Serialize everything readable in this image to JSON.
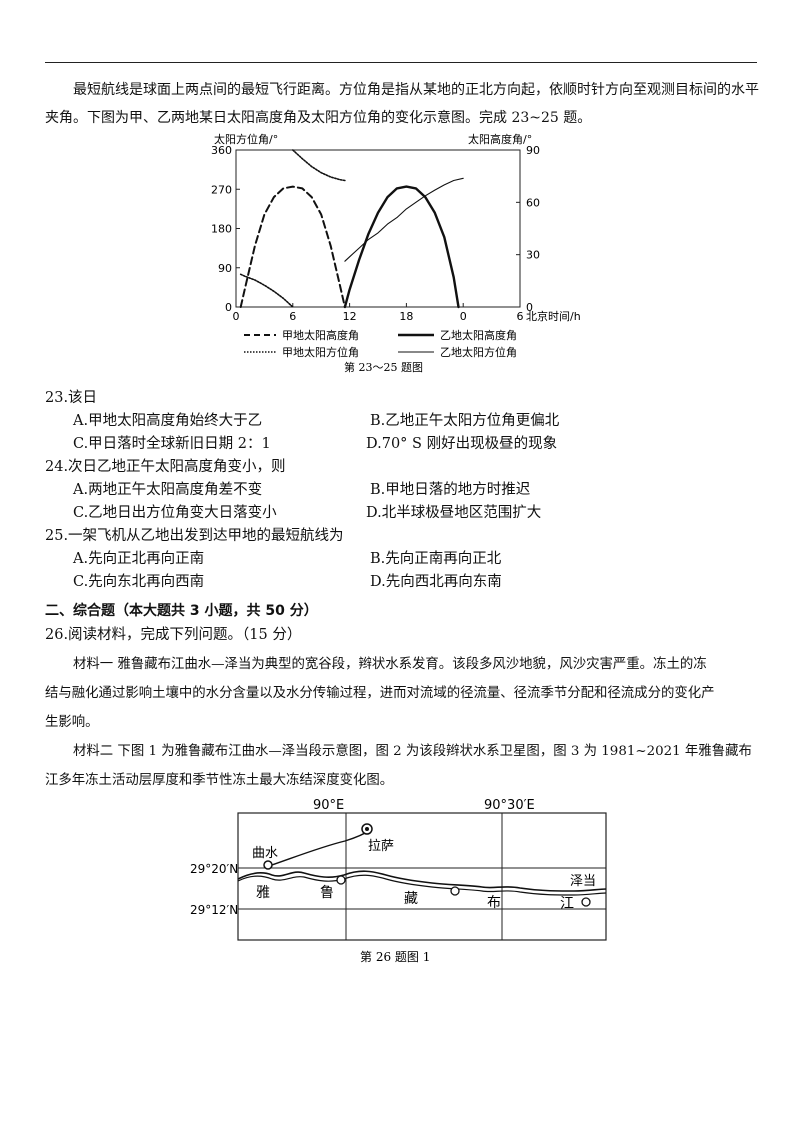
{
  "intro": {
    "line1": "最短航线是球面上两点间的最短飞行距离。方位角是指从某地的正北方向起，依顺时针方向至观测目标间的水平",
    "line2": "夹角。下图为甲、乙两地某日太阳高度角及太阳方位角的变化示意图。完成 23~25 题。"
  },
  "figure1": {
    "left_axis_label": "太阳方位角/°",
    "right_axis_label": "太阳高度角/°",
    "x_axis_label": "北京时间/h",
    "left_ticks": [
      "360",
      "270",
      "180",
      "90",
      "0"
    ],
    "right_ticks": [
      "90",
      "60",
      "30",
      "0"
    ],
    "x_ticks": [
      "0",
      "6",
      "12",
      "18",
      "0",
      "6"
    ],
    "legend": {
      "jia_alt": "甲地太阳高度角",
      "jia_az": "甲地太阳方位角",
      "yi_alt": "乙地太阳高度角",
      "yi_az": "乙地太阳方位角"
    },
    "caption": "第 23～25 题图"
  },
  "chart_data": {
    "type": "line",
    "xlabel": "北京时间/h",
    "ylabel_left": "太阳方位角/°",
    "ylabel_right": "太阳高度角/°",
    "ylim_left": [
      0,
      360
    ],
    "ylim_right": [
      0,
      90
    ],
    "x_tick_labels": [
      "0",
      "6",
      "12",
      "18",
      "0",
      "6"
    ],
    "series": [
      {
        "name": "甲地太阳高度角",
        "axis": "right",
        "style": "dashed",
        "x": [
          0.5,
          1,
          2,
          3,
          4,
          5,
          6,
          7,
          8,
          9,
          10,
          11,
          11.5
        ],
        "y": [
          0,
          12,
          35,
          53,
          63,
          68,
          69,
          68,
          63,
          53,
          35,
          12,
          0
        ]
      },
      {
        "name": "甲地太阳方位角",
        "axis": "left",
        "style": "dotted-lower",
        "x": [
          0.5,
          1,
          2,
          3,
          4,
          5,
          6
        ],
        "y": [
          75,
          70,
          62,
          50,
          36,
          20,
          0
        ]
      },
      {
        "name": "甲地太阳方位角",
        "axis": "left",
        "style": "dotted-upper",
        "x": [
          6,
          7,
          8,
          9,
          10,
          11,
          11.5
        ],
        "y": [
          360,
          340,
          322,
          308,
          298,
          292,
          290
        ]
      },
      {
        "name": "乙地太阳高度角",
        "axis": "right",
        "style": "solid",
        "x": [
          11.5,
          12,
          13,
          14,
          15,
          16,
          17,
          18,
          19,
          20,
          21,
          22,
          23,
          23.5
        ],
        "y": [
          0,
          10,
          27,
          42,
          54,
          63,
          68,
          69,
          68,
          63,
          54,
          40,
          17,
          0
        ]
      },
      {
        "name": "乙地太阳方位角",
        "axis": "left",
        "style": "solid-thin",
        "x": [
          11.5,
          12,
          13,
          14,
          15,
          16,
          17,
          18,
          19,
          20,
          21,
          22,
          23,
          24
        ],
        "y": [
          105,
          115,
          135,
          155,
          170,
          190,
          205,
          225,
          240,
          255,
          268,
          280,
          290,
          295
        ]
      }
    ]
  },
  "q23": {
    "stem": "23.该日",
    "a": "A.甲地太阳高度角始终大于乙",
    "b": "B.乙地正午太阳方位角更偏北",
    "c": "C.甲日落时全球新旧日期 2：1",
    "d": "D.70° S 刚好出现极昼的现象"
  },
  "q24": {
    "stem": "24.次日乙地正午太阳高度角变小，则",
    "a": "A.两地正午太阳高度角差不变",
    "b": "B.甲地日落的地方时推迟",
    "c": "C.乙地日出方位角变大日落变小",
    "d": "D.北半球极昼地区范围扩大"
  },
  "q25": {
    "stem": "25.一架飞机从乙地出发到达甲地的最短航线为",
    "a": "A.先向正北再向正南",
    "b": "B.先向正南再向正北",
    "c": "C.先向东北再向西南",
    "d": "D.先向西北再向东南"
  },
  "section2": "二、综合题（本大题共 3 小题，共 50 分）",
  "q26": {
    "stem": "26.阅读材料，完成下列问题。（15 分）",
    "m1_line1": "材料一  雅鲁藏布江曲水—泽当为典型的宽谷段，辫状水系发育。该段多风沙地貌，风沙灾害严重。冻土的冻",
    "m1_line2": "结与融化通过影响土壤中的水分含量以及水分传输过程，进而对流域的径流量、径流季节分配和径流成分的变化产",
    "m1_line3": "生影响。",
    "m2_line1": "材料二  下图 1 为雅鲁藏布江曲水—泽当段示意图，图 2 为该段辫状水系卫星图，图 3 为 1981~2021 年雅鲁藏布",
    "m2_line2": "江多年冻土活动层厚度和季节性冻土最大冻结深度变化图。"
  },
  "map": {
    "lon1": "90°E",
    "lon2": "90°30′E",
    "lat1": "29°20′N",
    "lat2": "29°12′N",
    "qushui": "曲水",
    "lhasa": "拉萨",
    "zedang": "泽当",
    "river_chars": [
      "雅",
      "鲁",
      "藏",
      "布",
      "江"
    ],
    "caption": "第 26 题图 1"
  }
}
